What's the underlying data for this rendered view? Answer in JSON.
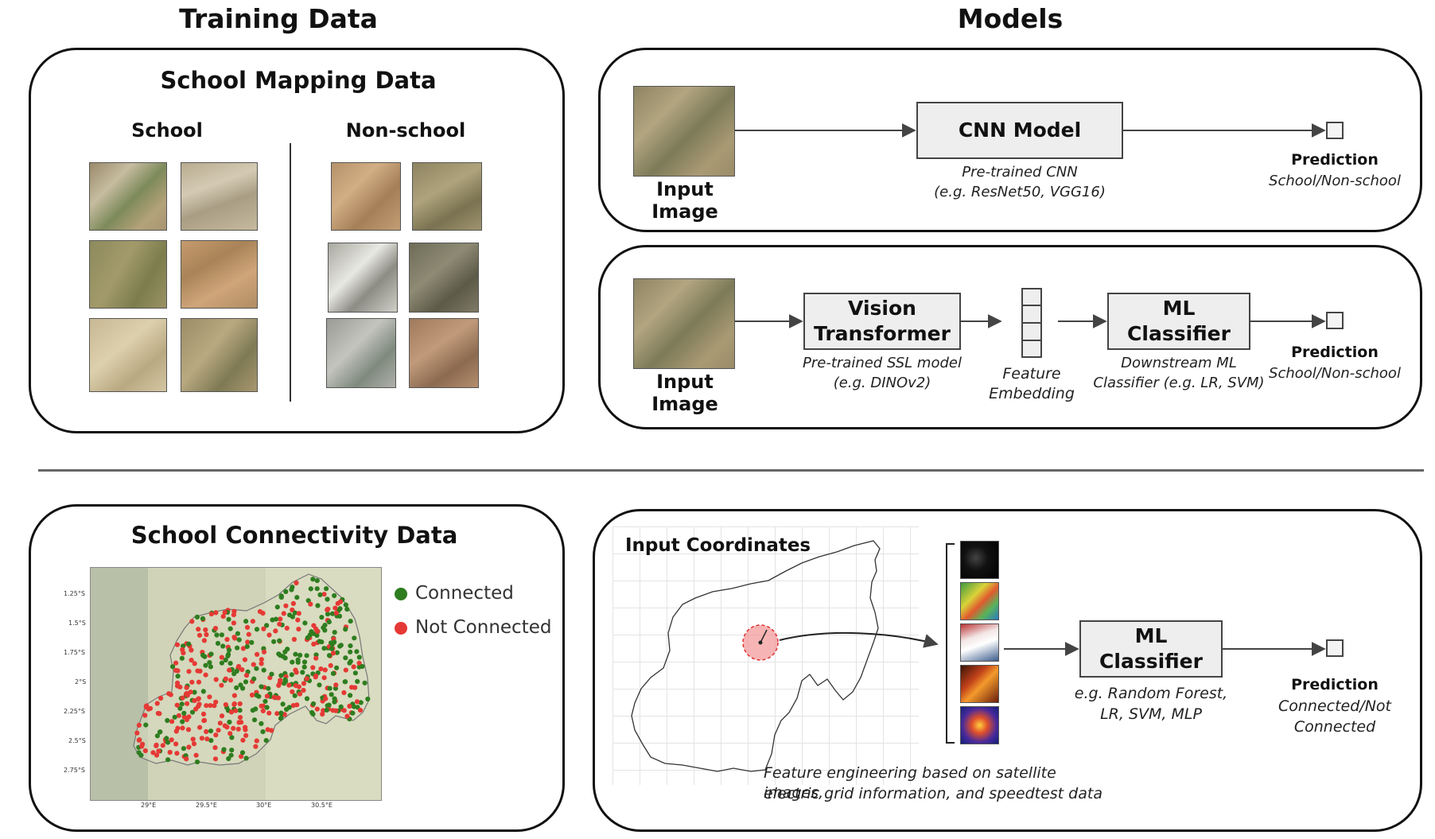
{
  "headers": {
    "training": "Training Data",
    "models": "Models"
  },
  "mapping": {
    "title": "School Mapping Data",
    "school_label": "School",
    "nonschool_label": "Non-school",
    "school_tiles": 6,
    "nonschool_tiles": 6
  },
  "cnn_pipeline": {
    "input_label": "Input Image",
    "model_label": "CNN Model",
    "model_note_1": "Pre-trained CNN",
    "model_note_2": "(e.g. ResNet50, VGG16)",
    "prediction_title": "Prediction",
    "prediction_value": "School/Non-school"
  },
  "vit_pipeline": {
    "input_label": "Input Image",
    "vit_line1": "Vision",
    "vit_line2": "Transformer",
    "vit_note_1": "Pre-trained SSL model",
    "vit_note_2": "(e.g. DINOv2)",
    "embedding_line1": "Feature",
    "embedding_line2": "Embedding",
    "clf_line1": "ML",
    "clf_line2": "Classifier",
    "clf_note_1": "Downstream ML",
    "clf_note_2": "Classifier (e.g. LR, SVM)",
    "prediction_title": "Prediction",
    "prediction_value": "School/Non-school"
  },
  "connectivity": {
    "title": "School Connectivity Data",
    "legend": [
      {
        "label": "Connected",
        "color": "#2e7d1f"
      },
      {
        "label": "Not Connected",
        "color": "#e53935"
      }
    ],
    "y_ticks": [
      "1.25°S",
      "1.5°S",
      "1.75°S",
      "2°S",
      "2.25°S",
      "2.5°S",
      "2.75°S"
    ],
    "x_ticks": [
      "29°E",
      "29.5°E",
      "30°E",
      "30.5°E"
    ]
  },
  "coords_pipeline": {
    "input_label": "Input Coordinates",
    "clf_line1": "ML",
    "clf_line2": "Classifier",
    "clf_note_1": "e.g. Random Forest,",
    "clf_note_2": "LR, SVM, MLP",
    "prediction_title": "Prediction",
    "prediction_value_1": "Connected/Not",
    "prediction_value_2": "Connected",
    "feature_note_1": "Feature engineering based on satellite images,",
    "feature_note_2": "electric grid information, and speedtest data"
  }
}
